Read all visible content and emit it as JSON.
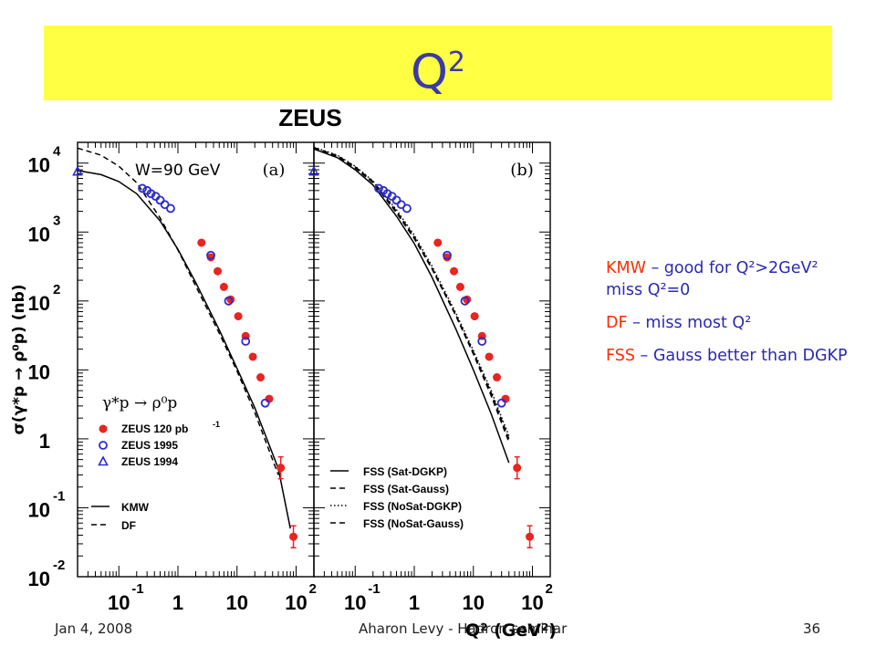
{
  "slide": {
    "title": "Q",
    "title_sup": "2",
    "footer_left": "Jan 4, 2008",
    "footer_center": "Aharon Levy - Hadron seminar",
    "footer_right": "36"
  },
  "notes": [
    {
      "key": "KMW",
      "text": " – good for Q²>2GeV² miss Q²=0"
    },
    {
      "key": "DF",
      "text": " – miss most Q²"
    },
    {
      "key": "FSS",
      "text": " – Gauss better than DGKP"
    }
  ],
  "colors": {
    "title_bg": "#ffff44",
    "title_text": "#3a3aa8",
    "data_red": "#e8251f",
    "data_blue": "#2b2bd0",
    "note_key": "#ff2a00",
    "note_text": "#2a2ab0"
  },
  "chart_data": {
    "type": "scatter",
    "experiment_label": "ZEUS",
    "ylabel": "σ(γ*p → ρ⁰p) (nb)",
    "xlabel": "Q² (GeV²)",
    "x_scale": "log",
    "y_scale": "log",
    "xlim": [
      0.02,
      200
    ],
    "ylim": [
      0.01,
      20000
    ],
    "y_ticks": [
      {
        "base": "10",
        "exp": "4"
      },
      {
        "base": "10",
        "exp": "3"
      },
      {
        "base": "10",
        "exp": "2"
      },
      {
        "base": "10",
        "exp": ""
      },
      {
        "base": "1",
        "exp": ""
      },
      {
        "base": "10",
        "exp": "-1"
      },
      {
        "base": "10",
        "exp": "-2"
      }
    ],
    "x_ticks": [
      {
        "base": "10",
        "exp": "-1"
      },
      {
        "base": "1",
        "exp": ""
      },
      {
        "base": "10",
        "exp": ""
      },
      {
        "base": "10",
        "exp": "2"
      }
    ],
    "panels": [
      {
        "tag": "(a)",
        "energy_label": "W=90 GeV",
        "process_label": "γ*p → ρ⁰p",
        "legend": [
          {
            "label": "ZEUS 120 pb",
            "sup": "-1",
            "marker": "filled-circle"
          },
          {
            "label": "ZEUS 1995",
            "marker": "open-circle"
          },
          {
            "label": "ZEUS 1994",
            "marker": "open-triangle"
          },
          {
            "label": "KMW",
            "line": "solid"
          },
          {
            "label": "DF",
            "line": "dashed"
          }
        ],
        "curves": [
          {
            "name": "KMW",
            "style": "solid",
            "x": [
              0.02,
              0.05,
              0.1,
              0.2,
              0.5,
              1,
              2,
              5,
              10,
              20,
              50,
              80
            ],
            "y": [
              7800,
              6800,
              5400,
              3600,
              1450,
              560,
              185,
              38,
              10.5,
              2.8,
              0.37,
              0.05
            ]
          },
          {
            "name": "DF",
            "style": "dashed",
            "x": [
              0.02,
              0.05,
              0.1,
              0.2,
              0.5,
              1,
              2,
              5,
              10,
              20,
              50
            ],
            "y": [
              16500,
              13000,
              9000,
              5200,
              1600,
              550,
              165,
              34,
              9.6,
              2.4,
              0.3
            ]
          }
        ],
        "series": [
          {
            "name": "ZEUS 120 pb-1",
            "marker": "filled-circle",
            "points": [
              [
                2.5,
                700
              ],
              [
                3.6,
                430
              ],
              [
                4.7,
                270
              ],
              [
                6.0,
                160
              ],
              [
                7.8,
                105
              ],
              [
                10.5,
                60
              ],
              [
                14.0,
                31
              ],
              [
                18.5,
                15.5
              ],
              [
                25.0,
                7.8
              ],
              [
                35.0,
                3.8
              ],
              [
                55.0,
                0.38
              ],
              [
                90.0,
                0.038
              ]
            ]
          },
          {
            "name": "ZEUS 1995",
            "marker": "open-circle",
            "points": [
              [
                0.25,
                4300
              ],
              [
                0.3,
                4000
              ],
              [
                0.35,
                3600
              ],
              [
                0.42,
                3300
              ],
              [
                0.5,
                2900
              ],
              [
                0.6,
                2500
              ],
              [
                0.75,
                2200
              ],
              [
                3.6,
                460
              ],
              [
                7.2,
                100
              ],
              [
                14.0,
                26
              ],
              [
                30.0,
                3.3
              ]
            ]
          },
          {
            "name": "ZEUS 1994",
            "marker": "open-triangle",
            "points": [
              [
                0.02,
                7500
              ]
            ]
          }
        ]
      },
      {
        "tag": "(b)",
        "legend": [
          {
            "label": "FSS (Sat-DGKP)",
            "line": "solid"
          },
          {
            "label": "FSS (Sat-Gauss)",
            "line": "dashed"
          },
          {
            "label": "FSS (NoSat-DGKP)",
            "line": "dotted"
          },
          {
            "label": "FSS (NoSat-Gauss)",
            "line": "dashed"
          }
        ],
        "curves": [
          {
            "name": "FSS (Sat-DGKP)",
            "style": "solid",
            "x": [
              0.02,
              0.05,
              0.1,
              0.2,
              0.5,
              1,
              2,
              5,
              10,
              20,
              40
            ],
            "y": [
              16000,
              12000,
              8000,
              4800,
              1700,
              680,
              220,
              40,
              10,
              2.3,
              0.45
            ]
          },
          {
            "name": "FSS (Sat-Gauss)",
            "style": "dashed",
            "x": [
              0.02,
              0.05,
              0.1,
              0.2,
              0.5,
              1,
              2,
              5,
              10,
              20,
              40
            ],
            "y": [
              16500,
              12500,
              8500,
              5200,
              1900,
              800,
              290,
              62,
              17,
              4.2,
              0.9
            ]
          },
          {
            "name": "FSS (NoSat-DGKP)",
            "style": "dotted",
            "x": [
              0.02,
              0.05,
              0.1,
              0.2,
              0.5,
              1,
              2,
              5,
              10,
              20,
              40
            ],
            "y": [
              17000,
              13000,
              9000,
              5500,
              2100,
              900,
              320,
              68,
              19,
              5.0,
              1.1
            ]
          },
          {
            "name": "FSS (NoSat-Gauss)",
            "style": "dashed",
            "x": [
              0.02,
              0.05,
              0.1,
              0.2,
              0.5,
              1,
              2,
              5,
              10,
              20,
              40
            ],
            "y": [
              16800,
              12800,
              8800,
              5400,
              2000,
              850,
              300,
              64,
              18,
              4.6,
              1.0
            ]
          }
        ],
        "series": [
          {
            "name": "ZEUS 120 pb-1",
            "marker": "filled-circle",
            "points": [
              [
                2.5,
                700
              ],
              [
                3.6,
                430
              ],
              [
                4.7,
                270
              ],
              [
                6.0,
                160
              ],
              [
                7.8,
                105
              ],
              [
                10.5,
                60
              ],
              [
                14.0,
                31
              ],
              [
                18.5,
                15.5
              ],
              [
                25.0,
                7.8
              ],
              [
                35.0,
                3.8
              ],
              [
                55.0,
                0.38
              ],
              [
                90.0,
                0.038
              ]
            ]
          },
          {
            "name": "ZEUS 1995",
            "marker": "open-circle",
            "points": [
              [
                0.25,
                4300
              ],
              [
                0.3,
                4000
              ],
              [
                0.35,
                3600
              ],
              [
                0.42,
                3300
              ],
              [
                0.5,
                2900
              ],
              [
                0.6,
                2500
              ],
              [
                0.75,
                2200
              ],
              [
                3.6,
                460
              ],
              [
                7.2,
                100
              ],
              [
                14.0,
                26
              ],
              [
                30.0,
                3.3
              ]
            ]
          },
          {
            "name": "ZEUS 1994",
            "marker": "open-triangle",
            "points": [
              [
                0.02,
                7500
              ]
            ]
          }
        ]
      }
    ]
  }
}
